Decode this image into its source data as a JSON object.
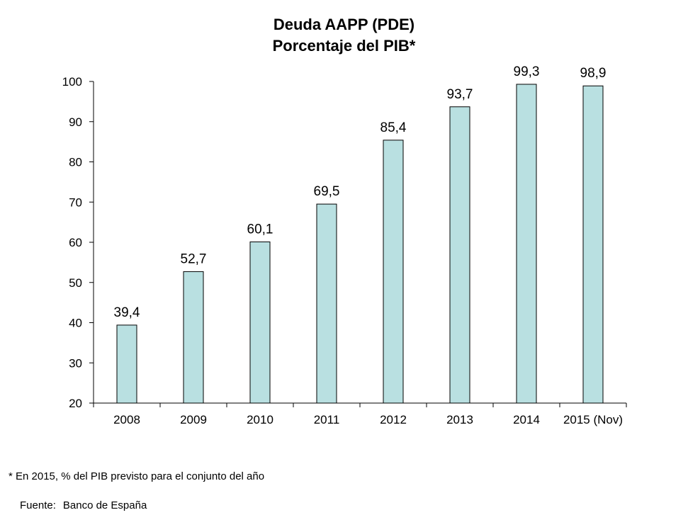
{
  "chart_data": {
    "type": "bar",
    "title": "Deuda AAPP (PDE)",
    "subtitle": "Porcentaje del PIB*",
    "categories": [
      "2008",
      "2009",
      "2010",
      "2011",
      "2012",
      "2013",
      "2014",
      "2015 (Nov)"
    ],
    "values": [
      39.4,
      52.7,
      60.1,
      69.5,
      85.4,
      93.7,
      99.3,
      98.9
    ],
    "value_labels": [
      "39,4",
      "52,7",
      "60,1",
      "69,5",
      "85,4",
      "93,7",
      "99,3",
      "98,9"
    ],
    "yticks": [
      20,
      30,
      40,
      50,
      60,
      70,
      80,
      90,
      100
    ],
    "ylim": [
      20,
      100
    ],
    "xlabel": "",
    "ylabel": "",
    "grid": false,
    "bar_color": "#b9e0e1",
    "bar_edge_color": "#000000"
  },
  "footnote": "* En 2015, % del PIB previsto para el conjunto del año",
  "source": {
    "label": "Fuente:",
    "name": "Banco de España"
  }
}
